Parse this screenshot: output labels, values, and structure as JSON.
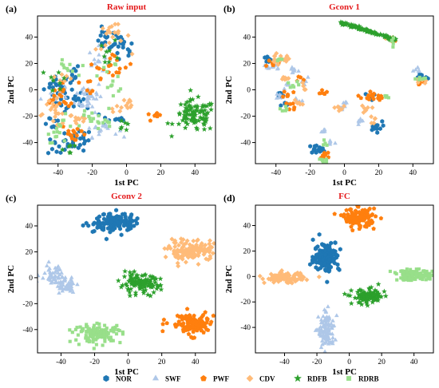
{
  "legend": [
    {
      "name": "NOR",
      "color": "#1f77b4",
      "marker": "hexagon"
    },
    {
      "name": "SWF",
      "color": "#aec7e8",
      "marker": "triangle"
    },
    {
      "name": "PWF",
      "color": "#ff7f0e",
      "marker": "pentagon"
    },
    {
      "name": "CDV",
      "color": "#ffbb78",
      "marker": "diamond"
    },
    {
      "name": "RDFB",
      "color": "#2ca02c",
      "marker": "star"
    },
    {
      "name": "RDRB",
      "color": "#98df8a",
      "marker": "square"
    }
  ],
  "chart_data": [
    {
      "type": "scatter",
      "panel_label": "(a)",
      "title": "Raw input",
      "xlabel": "1st PC",
      "ylabel": "2nd PC",
      "xlim": [
        -52,
        52
      ],
      "ylim": [
        -56,
        56
      ],
      "xticks": [
        -40,
        -20,
        0,
        20,
        40
      ],
      "yticks": [
        -40,
        -20,
        0,
        20,
        40
      ],
      "clusters": [
        {
          "class": "NOR",
          "points": [
            [
              -40,
              3,
              4,
              5,
              24
            ],
            [
              -30,
              -10,
              5,
              5,
              22
            ],
            [
              -28,
              -38,
              4,
              4,
              22
            ],
            [
              -12,
              38,
              4,
              4,
              16
            ],
            [
              -3,
              30,
              4,
              6,
              18
            ],
            [
              -40,
              -42,
              3,
              4,
              12
            ],
            [
              -7,
              -22,
              4,
              3,
              10
            ],
            [
              -33,
              12,
              3,
              4,
              10
            ],
            [
              -44,
              -25,
              3,
              3,
              8
            ]
          ]
        },
        {
          "class": "SWF",
          "points": [
            [
              -22,
              -5,
              4,
              6,
              40
            ],
            [
              -15,
              -30,
              5,
              3,
              18
            ],
            [
              -16,
              22,
              3,
              5,
              14
            ],
            [
              -44,
              -5,
              3,
              3,
              10
            ]
          ]
        },
        {
          "class": "PWF",
          "points": [
            [
              -38,
              -5,
              5,
              6,
              20
            ],
            [
              -6,
              18,
              5,
              5,
              16
            ],
            [
              16,
              -20,
              2,
              1,
              8
            ],
            [
              -30,
              -33,
              4,
              4,
              14
            ],
            [
              -20,
              8,
              3,
              4,
              8
            ]
          ]
        },
        {
          "class": "CDV",
          "points": [
            [
              -42,
              -18,
              5,
              5,
              22
            ],
            [
              -8,
              40,
              5,
              5,
              20
            ],
            [
              -2,
              -12,
              4,
              4,
              14
            ],
            [
              -28,
              -22,
              3,
              3,
              10
            ],
            [
              -36,
              10,
              3,
              3,
              8
            ]
          ]
        },
        {
          "class": "RDFB",
          "points": [
            [
              40,
              -20,
              6,
              6,
              95
            ],
            [
              -40,
              8,
              3,
              5,
              8
            ],
            [
              -10,
              28,
              3,
              5,
              8
            ],
            [
              -3,
              -25,
              3,
              3,
              6
            ],
            [
              -33,
              -45,
              2,
              2,
              6
            ]
          ]
        },
        {
          "class": "RDRB",
          "points": [
            [
              -38,
              -30,
              4,
              5,
              16
            ],
            [
              -22,
              -22,
              4,
              4,
              12
            ],
            [
              -8,
              10,
              4,
              6,
              14
            ],
            [
              -35,
              16,
              3,
              3,
              10
            ],
            [
              -14,
              -26,
              3,
              3,
              8
            ]
          ]
        }
      ]
    },
    {
      "type": "scatter",
      "panel_label": "(b)",
      "title": "Gconv 1",
      "xlabel": "1st PC",
      "ylabel": "2nd PC",
      "xlim": [
        -52,
        52
      ],
      "ylim": [
        -56,
        56
      ],
      "xticks": [
        -40,
        -20,
        0,
        20,
        40
      ],
      "yticks": [
        -40,
        -20,
        0,
        20,
        40
      ],
      "clusters": [
        {
          "class": "NOR",
          "points": [
            [
              -16,
              -45,
              2.5,
              1.5,
              14
            ],
            [
              18,
              -28,
              2,
              2,
              14
            ],
            [
              -45,
              23,
              1.5,
              1.5,
              8
            ],
            [
              -38,
              -5,
              1.5,
              1.5,
              6
            ],
            [
              -34,
              -12,
              1.5,
              1.5,
              6
            ],
            [
              46,
              10,
              1.5,
              1.5,
              6
            ],
            [
              15,
              -5,
              1.5,
              1.5,
              4
            ]
          ]
        },
        {
          "class": "SWF",
          "points": [
            [
              -12,
              -32,
              1.5,
              1.5,
              6
            ],
            [
              -8,
              -40,
              1.5,
              1.5,
              6
            ],
            [
              -45,
              17,
              1.5,
              1.5,
              8
            ],
            [
              -40,
              17,
              1.5,
              1.5,
              6
            ],
            [
              -37,
              -5,
              1.5,
              1.5,
              6
            ],
            [
              -30,
              15,
              1.5,
              1.5,
              8
            ],
            [
              -33,
              3,
              1.5,
              1.5,
              4
            ],
            [
              -27,
              -8,
              1.5,
              1.5,
              6
            ],
            [
              -23,
              8,
              1.5,
              1.5,
              6
            ],
            [
              -2,
              -14,
              1.5,
              1.5,
              6
            ],
            [
              10,
              -24,
              1.5,
              1.5,
              6
            ],
            [
              43,
              14,
              1.5,
              1.5,
              6
            ],
            [
              0,
              -10,
              1,
              1,
              4
            ]
          ]
        },
        {
          "class": "PWF",
          "points": [
            [
              14,
              -5,
              2,
              2,
              14
            ],
            [
              -11,
              -49,
              1.5,
              1.5,
              8
            ],
            [
              -42,
              20,
              1.5,
              1.5,
              6
            ],
            [
              -33,
              -3,
              1.5,
              1.5,
              6
            ],
            [
              -30,
              -12,
              1.5,
              1.5,
              6
            ],
            [
              -13,
              -1,
              1.5,
              1.5,
              6
            ],
            [
              -26,
              8,
              1.5,
              1.5,
              4
            ],
            [
              20,
              -6,
              1.5,
              1.5,
              6
            ],
            [
              45,
              5,
              1.5,
              1.5,
              6
            ],
            [
              28,
              38,
              1.5,
              1.5,
              6
            ]
          ]
        },
        {
          "class": "CDV",
          "points": [
            [
              -41,
              23,
              2,
              2,
              10
            ],
            [
              -36,
              23,
              1.5,
              1.5,
              8
            ],
            [
              -35,
              8,
              1.5,
              1.5,
              6
            ],
            [
              -27,
              -10,
              1.5,
              1.5,
              6
            ],
            [
              -25,
              3,
              1.5,
              1.5,
              4
            ],
            [
              -3,
              -14,
              1.5,
              1.5,
              6
            ],
            [
              13,
              -15,
              1.5,
              1.5,
              6
            ],
            [
              16,
              -23,
              1.5,
              1.5,
              6
            ],
            [
              27,
              39,
              1.5,
              1.5,
              6
            ],
            [
              45,
              7,
              1.5,
              1.5,
              6
            ]
          ]
        },
        {
          "class": "RDFB",
          "line": [
            [
              -2,
              51
            ],
            [
              30,
              38
            ]
          ],
          "n": 110
        },
        {
          "class": "RDRB",
          "points": [
            [
              -13,
              -54,
              1.5,
              1.5,
              8
            ],
            [
              -35,
              -15,
              1.5,
              1.5,
              6
            ],
            [
              -30,
              3,
              1.5,
              1.5,
              6
            ],
            [
              -38,
              23,
              1.5,
              1.5,
              4
            ],
            [
              -12,
              -42,
              1.5,
              1.5,
              4
            ],
            [
              28,
              37,
              1.5,
              1.5,
              6
            ],
            [
              45,
              8,
              1.5,
              1.5,
              6
            ],
            [
              25,
              -5,
              1.5,
              1.5,
              4
            ]
          ]
        }
      ]
    },
    {
      "type": "scatter",
      "panel_label": "(c)",
      "title": "Gconv 2",
      "xlabel": "1st PC",
      "ylabel": "2nd PC",
      "xlim": [
        -54,
        52
      ],
      "ylim": [
        -58,
        56
      ],
      "xticks": [
        -40,
        -20,
        0,
        20,
        40
      ],
      "yticks": [
        -40,
        -20,
        0,
        20,
        40
      ],
      "clusters": [
        {
          "class": "NOR",
          "points": [
            [
              -8,
              43,
              6,
              3.5,
              130
            ]
          ]
        },
        {
          "class": "SWF",
          "points": [
            [
              -45,
              1,
              4,
              4,
              50
            ],
            [
              -37,
              -6,
              3,
              3,
              40
            ]
          ]
        },
        {
          "class": "PWF",
          "points": [
            [
              38,
              -36,
              7,
              4,
              130
            ]
          ]
        },
        {
          "class": "CDV",
          "points": [
            [
              38,
              21,
              7,
              4,
              130
            ]
          ]
        },
        {
          "class": "RDFB",
          "points": [
            [
              7,
              -5,
              6,
              3.5,
              110
            ]
          ]
        },
        {
          "class": "RDRB",
          "points": [
            [
              -18,
              -43,
              7,
              3.5,
              130
            ]
          ]
        }
      ]
    },
    {
      "type": "scatter",
      "panel_label": "(d)",
      "title": "FC",
      "xlabel": "1st PC",
      "ylabel": "2nd PC",
      "xlim": [
        -58,
        52
      ],
      "ylim": [
        -60,
        56
      ],
      "xticks": [
        -40,
        -20,
        0,
        20,
        40
      ],
      "yticks": [
        -40,
        -20,
        0,
        20,
        40
      ],
      "clusters": [
        {
          "class": "NOR",
          "points": [
            [
              -14,
              16,
              4,
              6,
              130
            ]
          ]
        },
        {
          "class": "SWF",
          "points": [
            [
              -14,
              -43,
              2.5,
              7,
              110
            ]
          ]
        },
        {
          "class": "PWF",
          "points": [
            [
              6,
              46,
              5,
              3.5,
              120
            ]
          ]
        },
        {
          "class": "CDV",
          "points": [
            [
              -40,
              -1,
              6,
              2,
              100
            ]
          ]
        },
        {
          "class": "RDFB",
          "points": [
            [
              12,
              -16,
              5,
              3,
              100
            ]
          ]
        },
        {
          "class": "RDRB",
          "points": [
            [
              41,
              1,
              7,
              2,
              120
            ]
          ]
        }
      ]
    }
  ]
}
